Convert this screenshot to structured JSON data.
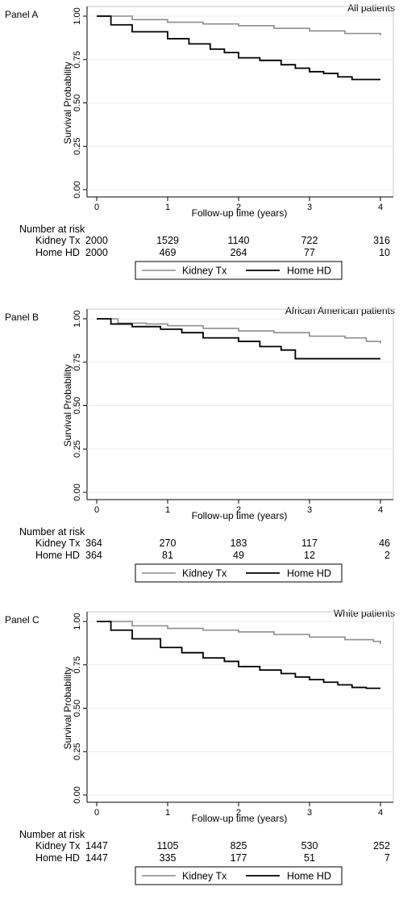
{
  "chart_data": [
    {
      "type": "line",
      "panel_label": "Panel A",
      "title": "All patients",
      "xlabel": "Follow-up time (years)",
      "ylabel": "Survival Probability",
      "xlim": [
        0,
        4
      ],
      "ylim": [
        0,
        1
      ],
      "xticks": [
        "0",
        "1",
        "2",
        "3",
        "4"
      ],
      "yticks": [
        "0.00",
        "0.25",
        "0.50",
        "0.75",
        "1.00"
      ],
      "grid": "horizontal",
      "legend_position": "bottom",
      "series": [
        {
          "name": "Kidney Tx",
          "color": "#8c8c8c",
          "x": [
            0,
            0.5,
            1,
            1.5,
            2,
            2.5,
            3,
            3.5,
            4
          ],
          "y": [
            1.0,
            0.98,
            0.965,
            0.955,
            0.945,
            0.93,
            0.915,
            0.9,
            0.89
          ]
        },
        {
          "name": "Home HD",
          "color": "#000000",
          "x": [
            0,
            0.2,
            0.5,
            1,
            1.3,
            1.6,
            1.8,
            2,
            2.3,
            2.6,
            2.8,
            3,
            3.2,
            3.4,
            3.6,
            4
          ],
          "y": [
            1.0,
            0.95,
            0.91,
            0.87,
            0.84,
            0.81,
            0.79,
            0.76,
            0.745,
            0.72,
            0.7,
            0.68,
            0.67,
            0.65,
            0.635,
            0.635
          ]
        }
      ],
      "risk_table": {
        "title": "Number at risk",
        "rows": [
          {
            "label": "Kidney Tx",
            "values": [
              "2000",
              "1529",
              "1140",
              "722",
              "316"
            ]
          },
          {
            "label": "Home HD",
            "values": [
              "2000",
              "469",
              "264",
              "77",
              "10"
            ]
          }
        ]
      }
    },
    {
      "type": "line",
      "panel_label": "Panel B",
      "title": "African American patients",
      "xlabel": "Follow-up time (years)",
      "ylabel": "Survival Probability",
      "xlim": [
        0,
        4
      ],
      "ylim": [
        0,
        1
      ],
      "xticks": [
        "0",
        "1",
        "2",
        "3",
        "4"
      ],
      "yticks": [
        "0.00",
        "0.25",
        "0.50",
        "0.75",
        "1.00"
      ],
      "grid": "horizontal",
      "legend_position": "bottom",
      "series": [
        {
          "name": "Kidney Tx",
          "color": "#8c8c8c",
          "x": [
            0,
            0.3,
            0.7,
            1,
            1.5,
            2,
            2.5,
            3,
            3.5,
            3.8,
            4
          ],
          "y": [
            1.0,
            0.975,
            0.97,
            0.96,
            0.945,
            0.93,
            0.92,
            0.9,
            0.89,
            0.87,
            0.86
          ]
        },
        {
          "name": "Home HD",
          "color": "#000000",
          "x": [
            0,
            0.2,
            0.5,
            0.9,
            1.2,
            1.5,
            2,
            2.3,
            2.6,
            2.8,
            3.2,
            4
          ],
          "y": [
            1.0,
            0.97,
            0.955,
            0.94,
            0.92,
            0.89,
            0.87,
            0.84,
            0.82,
            0.77,
            0.77,
            0.77
          ]
        }
      ],
      "risk_table": {
        "title": "Number at risk",
        "rows": [
          {
            "label": "Kidney Tx",
            "values": [
              "364",
              "270",
              "183",
              "117",
              "46"
            ]
          },
          {
            "label": "Home HD",
            "values": [
              "364",
              "81",
              "49",
              "12",
              "2"
            ]
          }
        ]
      }
    },
    {
      "type": "line",
      "panel_label": "Panel C",
      "title": "White patients",
      "xlabel": "Follow-up time (years)",
      "ylabel": "Survival Probability",
      "xlim": [
        0,
        4
      ],
      "ylim": [
        0,
        1
      ],
      "xticks": [
        "0",
        "1",
        "2",
        "3",
        "4"
      ],
      "yticks": [
        "0.00",
        "0.25",
        "0.50",
        "0.75",
        "1.00"
      ],
      "grid": "horizontal",
      "legend_position": "bottom",
      "series": [
        {
          "name": "Kidney Tx",
          "color": "#8c8c8c",
          "x": [
            0,
            0.5,
            1,
            1.5,
            2,
            2.5,
            3,
            3.5,
            3.9,
            4
          ],
          "y": [
            1.0,
            0.975,
            0.96,
            0.95,
            0.94,
            0.925,
            0.91,
            0.895,
            0.885,
            0.87
          ]
        },
        {
          "name": "Home HD",
          "color": "#000000",
          "x": [
            0,
            0.2,
            0.5,
            0.9,
            1.2,
            1.5,
            1.8,
            2,
            2.3,
            2.6,
            2.8,
            3,
            3.2,
            3.4,
            3.6,
            3.8,
            4
          ],
          "y": [
            1.0,
            0.95,
            0.9,
            0.85,
            0.82,
            0.79,
            0.77,
            0.74,
            0.72,
            0.7,
            0.68,
            0.665,
            0.65,
            0.635,
            0.62,
            0.615,
            0.615
          ]
        }
      ],
      "risk_table": {
        "title": "Number at risk",
        "rows": [
          {
            "label": "Kidney Tx",
            "values": [
              "1447",
              "1105",
              "825",
              "530",
              "252"
            ]
          },
          {
            "label": "Home HD",
            "values": [
              "1447",
              "335",
              "177",
              "51",
              "7"
            ]
          }
        ]
      }
    }
  ]
}
